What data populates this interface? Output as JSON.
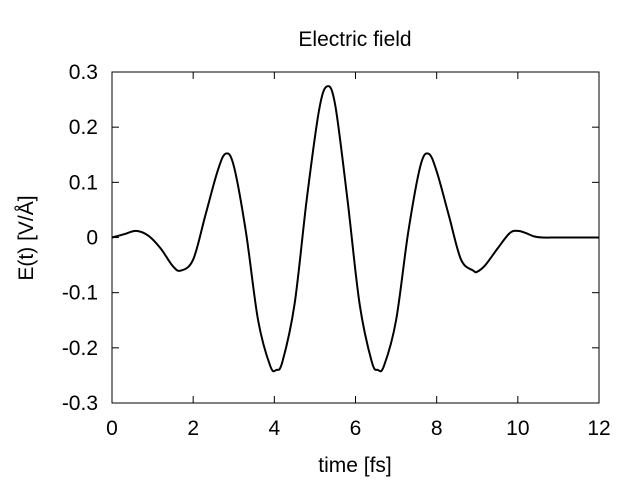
{
  "chart_data": {
    "type": "line",
    "title": "Electric field",
    "xlabel": "time [fs]",
    "ylabel": "E(t) [V/Å]",
    "xlim": [
      0,
      12
    ],
    "ylim": [
      -0.3,
      0.3
    ],
    "xticks": [
      0,
      2,
      4,
      6,
      8,
      10,
      12
    ],
    "xtick_labels": [
      "0",
      "2",
      "4",
      "6",
      "8",
      "10",
      "12"
    ],
    "yticks": [
      -0.3,
      -0.2,
      -0.1,
      0,
      0.1,
      0.2,
      0.3
    ],
    "ytick_labels": [
      "-0.3",
      "-0.2",
      "-0.1",
      "0",
      "0.1",
      "0.2",
      "0.3"
    ],
    "grid": false,
    "legend": "none",
    "series": [
      {
        "color": "#000000",
        "x": [
          0,
          0.3,
          0.6,
          0.9,
          1.2,
          1.5,
          1.7,
          2.0,
          2.3,
          2.6,
          2.8,
          3.0,
          3.3,
          3.6,
          3.9,
          4.05,
          4.2,
          4.5,
          4.8,
          5.1,
          5.3,
          5.5,
          5.8,
          6.1,
          6.4,
          6.55,
          6.7,
          7.0,
          7.3,
          7.6,
          7.8,
          8.0,
          8.3,
          8.6,
          8.9,
          9.0,
          9.2,
          9.5,
          9.8,
          10.0,
          10.2,
          10.4,
          10.6,
          11.0,
          11.5,
          12.0
        ],
        "y": [
          0,
          0.006,
          0.012,
          0.003,
          -0.02,
          -0.052,
          -0.06,
          -0.04,
          0.04,
          0.12,
          0.152,
          0.13,
          0.01,
          -0.15,
          -0.233,
          -0.24,
          -0.225,
          -0.12,
          0.07,
          0.23,
          0.274,
          0.24,
          0.07,
          -0.12,
          -0.225,
          -0.24,
          -0.233,
          -0.15,
          0.01,
          0.13,
          0.152,
          0.12,
          0.04,
          -0.04,
          -0.06,
          -0.062,
          -0.05,
          -0.02,
          0.008,
          0.012,
          0.008,
          0.002,
          0,
          0,
          0,
          0
        ]
      }
    ]
  }
}
